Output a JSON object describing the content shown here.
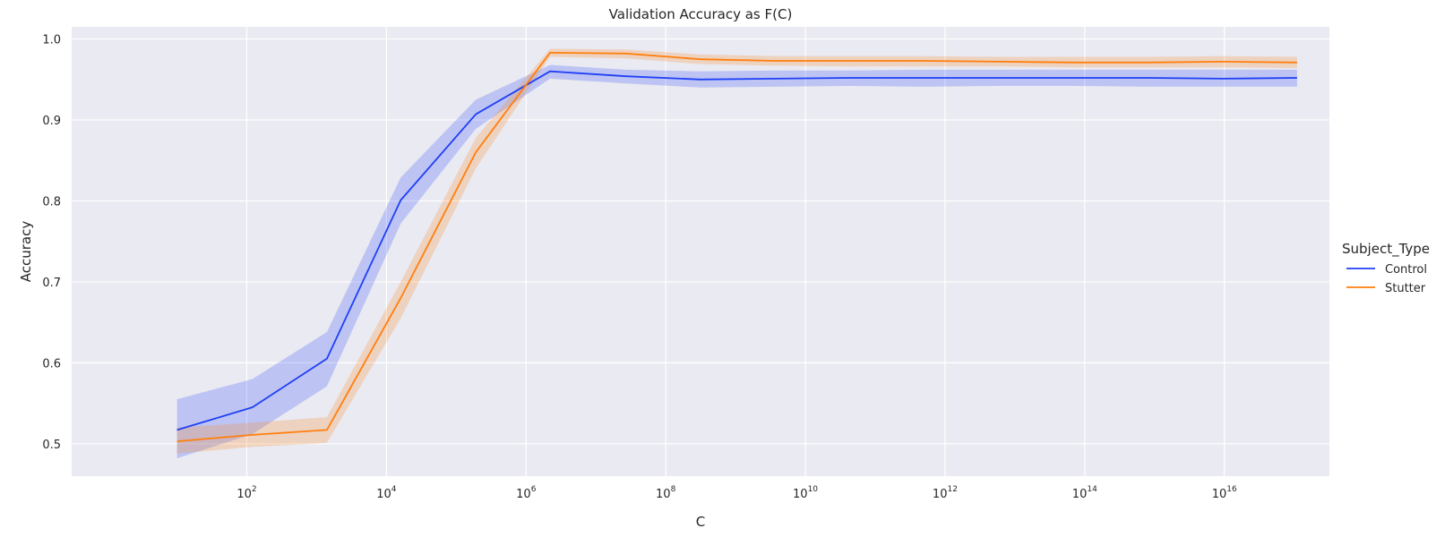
{
  "chart_data": {
    "type": "line",
    "title": "Validation Accuracy as F(C)",
    "xlabel": "C",
    "ylabel": "Accuracy",
    "x_scale": "log10",
    "xlim": [
      0.31,
      3.2e+17
    ],
    "ylim": [
      0.46,
      1.015
    ],
    "x": [
      10,
      120,
      1400,
      16000,
      190000,
      2200000,
      27000000,
      310000000,
      3700000000,
      43000000000,
      500000000000,
      6000000000000,
      70000000000000,
      800000000000000,
      9500000000000000,
      110000000000000000
    ],
    "x_tick_exponents": [
      "2",
      "4",
      "6",
      "8",
      "10",
      "12",
      "14",
      "16"
    ],
    "y_ticks": [
      "0.5",
      "0.6",
      "0.7",
      "0.8",
      "0.9",
      "1.0"
    ],
    "grid": true,
    "legend": {
      "title": "Subject_Type",
      "placement": "outside-right"
    },
    "series": [
      {
        "name": "Control",
        "color": "#1f3ff7",
        "values": [
          0.517,
          0.545,
          0.605,
          0.801,
          0.907,
          0.96,
          0.954,
          0.95,
          0.951,
          0.952,
          0.952,
          0.952,
          0.952,
          0.952,
          0.951,
          0.952
        ],
        "lower": [
          0.482,
          0.512,
          0.571,
          0.772,
          0.889,
          0.951,
          0.945,
          0.94,
          0.941,
          0.942,
          0.941,
          0.942,
          0.942,
          0.941,
          0.941,
          0.941
        ],
        "upper": [
          0.555,
          0.58,
          0.638,
          0.829,
          0.925,
          0.968,
          0.962,
          0.96,
          0.961,
          0.961,
          0.962,
          0.962,
          0.962,
          0.962,
          0.962,
          0.962
        ]
      },
      {
        "name": "Stutter",
        "color": "#ff7f0e",
        "values": [
          0.503,
          0.511,
          0.517,
          0.68,
          0.86,
          0.983,
          0.982,
          0.975,
          0.973,
          0.973,
          0.973,
          0.972,
          0.971,
          0.971,
          0.972,
          0.971
        ],
        "lower": [
          0.488,
          0.496,
          0.501,
          0.655,
          0.84,
          0.978,
          0.976,
          0.969,
          0.967,
          0.966,
          0.966,
          0.966,
          0.965,
          0.965,
          0.965,
          0.964
        ],
        "upper": [
          0.52,
          0.526,
          0.533,
          0.7,
          0.878,
          0.988,
          0.987,
          0.981,
          0.979,
          0.979,
          0.979,
          0.978,
          0.978,
          0.978,
          0.979,
          0.978
        ]
      }
    ]
  }
}
